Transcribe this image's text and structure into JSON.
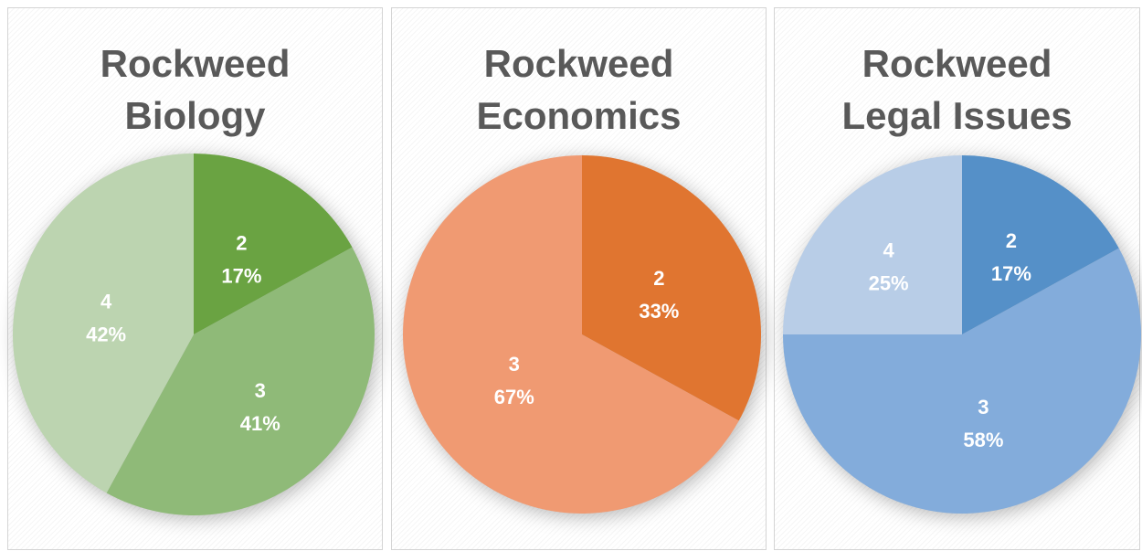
{
  "chart_data": [
    {
      "type": "pie",
      "title_lines": [
        "Rockweed",
        "Biology"
      ],
      "slices": [
        {
          "category": "2",
          "label": "17%",
          "value": 17,
          "color": "#6aa342"
        },
        {
          "category": "3",
          "label": "41%",
          "value": 41,
          "color": "#8fba78"
        },
        {
          "category": "4",
          "label": "42%",
          "value": 42,
          "color": "#bcd4b0"
        }
      ]
    },
    {
      "type": "pie",
      "title_lines": [
        "Rockweed",
        "Economics"
      ],
      "slices": [
        {
          "category": "2",
          "label": "33%",
          "value": 33,
          "color": "#e07530"
        },
        {
          "category": "3",
          "label": "67%",
          "value": 67,
          "color": "#f09a72"
        }
      ]
    },
    {
      "type": "pie",
      "title_lines": [
        "Rockweed",
        "Legal Issues"
      ],
      "slices": [
        {
          "category": "2",
          "label": "17%",
          "value": 17,
          "color": "#5590c8"
        },
        {
          "category": "3",
          "label": "58%",
          "value": 58,
          "color": "#83acdb"
        },
        {
          "category": "4",
          "label": "25%",
          "value": 25,
          "color": "#b8cde7"
        }
      ]
    }
  ]
}
